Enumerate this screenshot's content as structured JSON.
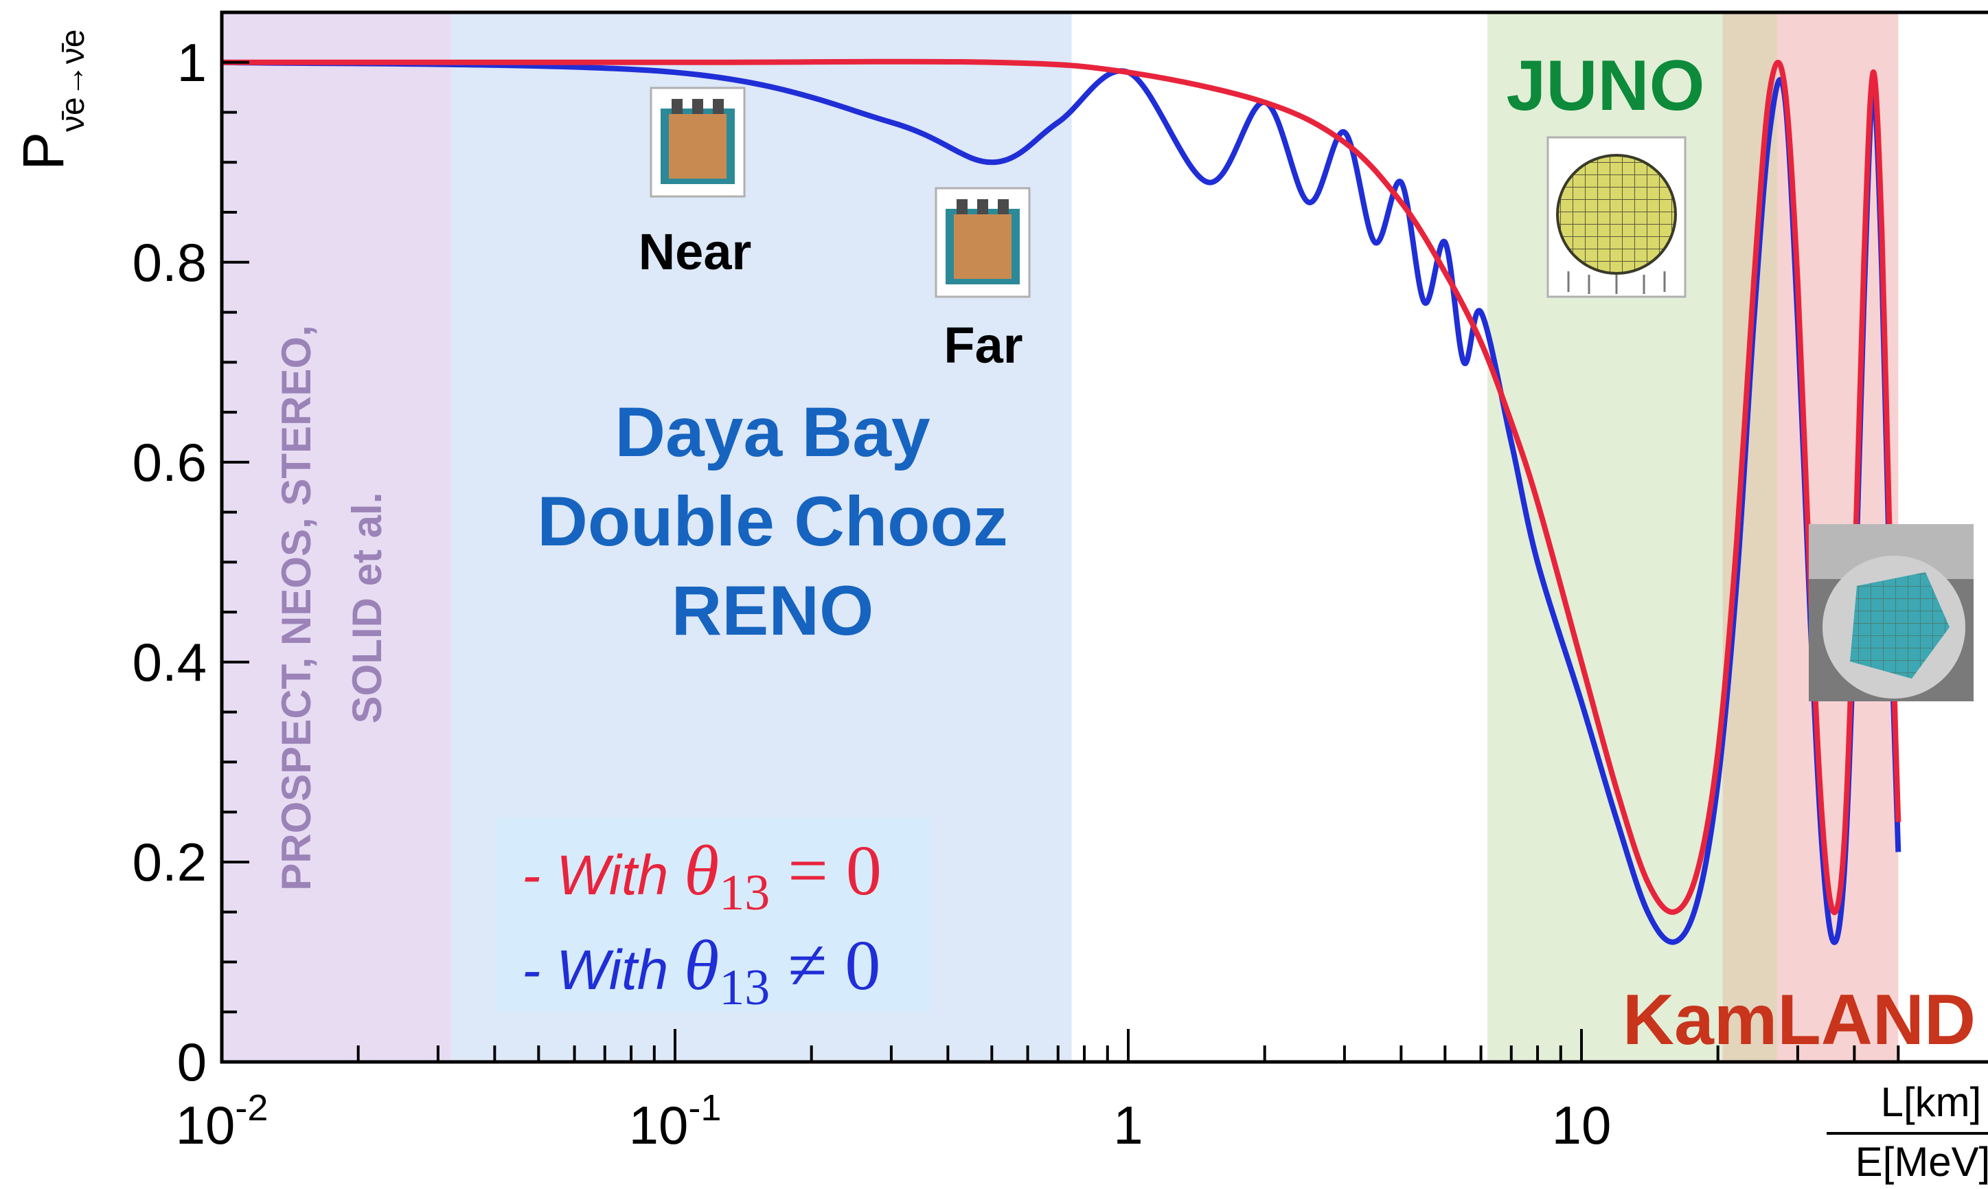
{
  "chart_data": {
    "type": "line",
    "title": "",
    "xlabel_numerator": "L[km]",
    "xlabel_denominator": "E[MeV]",
    "ylabel_main": "P",
    "ylabel_sub": "ν̄e→ν̄e",
    "xscale": "log",
    "xlim": [
      0.01,
      50
    ],
    "ylim": [
      0,
      1.05
    ],
    "x_ticks": [
      {
        "value": 0.01,
        "base": "10",
        "exp": "-2"
      },
      {
        "value": 0.1,
        "base": "10",
        "exp": "-1"
      },
      {
        "value": 1,
        "base": "1",
        "exp": ""
      },
      {
        "value": 10,
        "base": "10",
        "exp": ""
      }
    ],
    "y_ticks": [
      {
        "value": 0,
        "label": "0"
      },
      {
        "value": 0.2,
        "label": "0.2"
      },
      {
        "value": 0.4,
        "label": "0.4"
      },
      {
        "value": 0.6,
        "label": "0.6"
      },
      {
        "value": 0.8,
        "label": "0.8"
      },
      {
        "value": 1,
        "label": "1"
      }
    ],
    "grid": false,
    "legend_position": "bottom-left",
    "series": [
      {
        "name": "- With θ13 = 0",
        "color": "#e8243c",
        "x": [
          0.01,
          0.1,
          0.5,
          1,
          2,
          3,
          4,
          5,
          6,
          7,
          8,
          10,
          12,
          14,
          16,
          18,
          20,
          22,
          24,
          26,
          28,
          30,
          32,
          34,
          36,
          38,
          40,
          42,
          44,
          46,
          48,
          50
        ],
        "y": [
          1.0,
          1.0,
          1.0,
          0.99,
          0.96,
          0.92,
          0.86,
          0.79,
          0.72,
          0.64,
          0.56,
          0.4,
          0.27,
          0.18,
          0.15,
          0.19,
          0.31,
          0.52,
          0.78,
          0.97,
          0.98,
          0.78,
          0.47,
          0.24,
          0.15,
          0.22,
          0.48,
          0.8,
          0.99,
          0.83,
          0.5,
          0.24
        ]
      },
      {
        "name": "- With θ13 ≠ 0",
        "color": "#1f2ed6",
        "x": [
          0.01,
          0.1,
          0.3,
          0.5,
          0.7,
          1,
          1.5,
          2,
          2.5,
          3,
          3.5,
          4,
          4.5,
          5,
          5.5,
          6,
          7,
          8,
          10,
          12,
          14,
          16,
          18,
          20,
          22,
          24,
          26,
          28,
          30,
          32,
          34,
          36,
          38,
          40,
          42,
          44,
          46,
          48,
          50
        ],
        "y": [
          1.0,
          0.99,
          0.94,
          0.9,
          0.94,
          0.99,
          0.88,
          0.96,
          0.86,
          0.93,
          0.82,
          0.88,
          0.76,
          0.82,
          0.7,
          0.75,
          0.62,
          0.5,
          0.36,
          0.24,
          0.15,
          0.12,
          0.16,
          0.28,
          0.48,
          0.74,
          0.93,
          0.97,
          0.74,
          0.44,
          0.21,
          0.12,
          0.19,
          0.44,
          0.76,
          0.97,
          0.79,
          0.46,
          0.21
        ]
      }
    ],
    "regions": [
      {
        "label": "PROSPECT, NEOS, STEREO,\nSOLID et al.",
        "x_range": [
          0.01,
          0.032
        ],
        "color": "#e7dcf2",
        "text_color": "#9b83b8"
      },
      {
        "label": "Daya Bay\nDouble Chooz\nRENO",
        "x_range": [
          0.032,
          0.75
        ],
        "color": "#dde8f8",
        "text_color": "#1664c0"
      },
      {
        "label": "JUNO",
        "x_range": [
          6.2,
          20.5
        ],
        "color": "#e2eed6",
        "text_color": "#0d8a3a"
      },
      {
        "label": "KamLAND",
        "x_range": [
          20.5,
          50
        ],
        "color": "#f6d2d2",
        "text_color": "#c8341c"
      }
    ],
    "annotations": [
      "Near",
      "Far"
    ]
  },
  "legend": {
    "red_prefix": "- With ",
    "red_math": "θ",
    "red_sub": "13",
    "red_rel": " = 0",
    "blue_prefix": "- With ",
    "blue_math": "θ",
    "blue_sub": "13",
    "blue_rel": " ≠ 0"
  },
  "colors": {
    "axis": "#000000",
    "red_curve": "#e8243c",
    "blue_curve": "#1f2ed6"
  },
  "icons": [
    "detector-tank-near-icon",
    "detector-tank-far-icon",
    "juno-sphere-icon",
    "kamland-detector-icon"
  ]
}
